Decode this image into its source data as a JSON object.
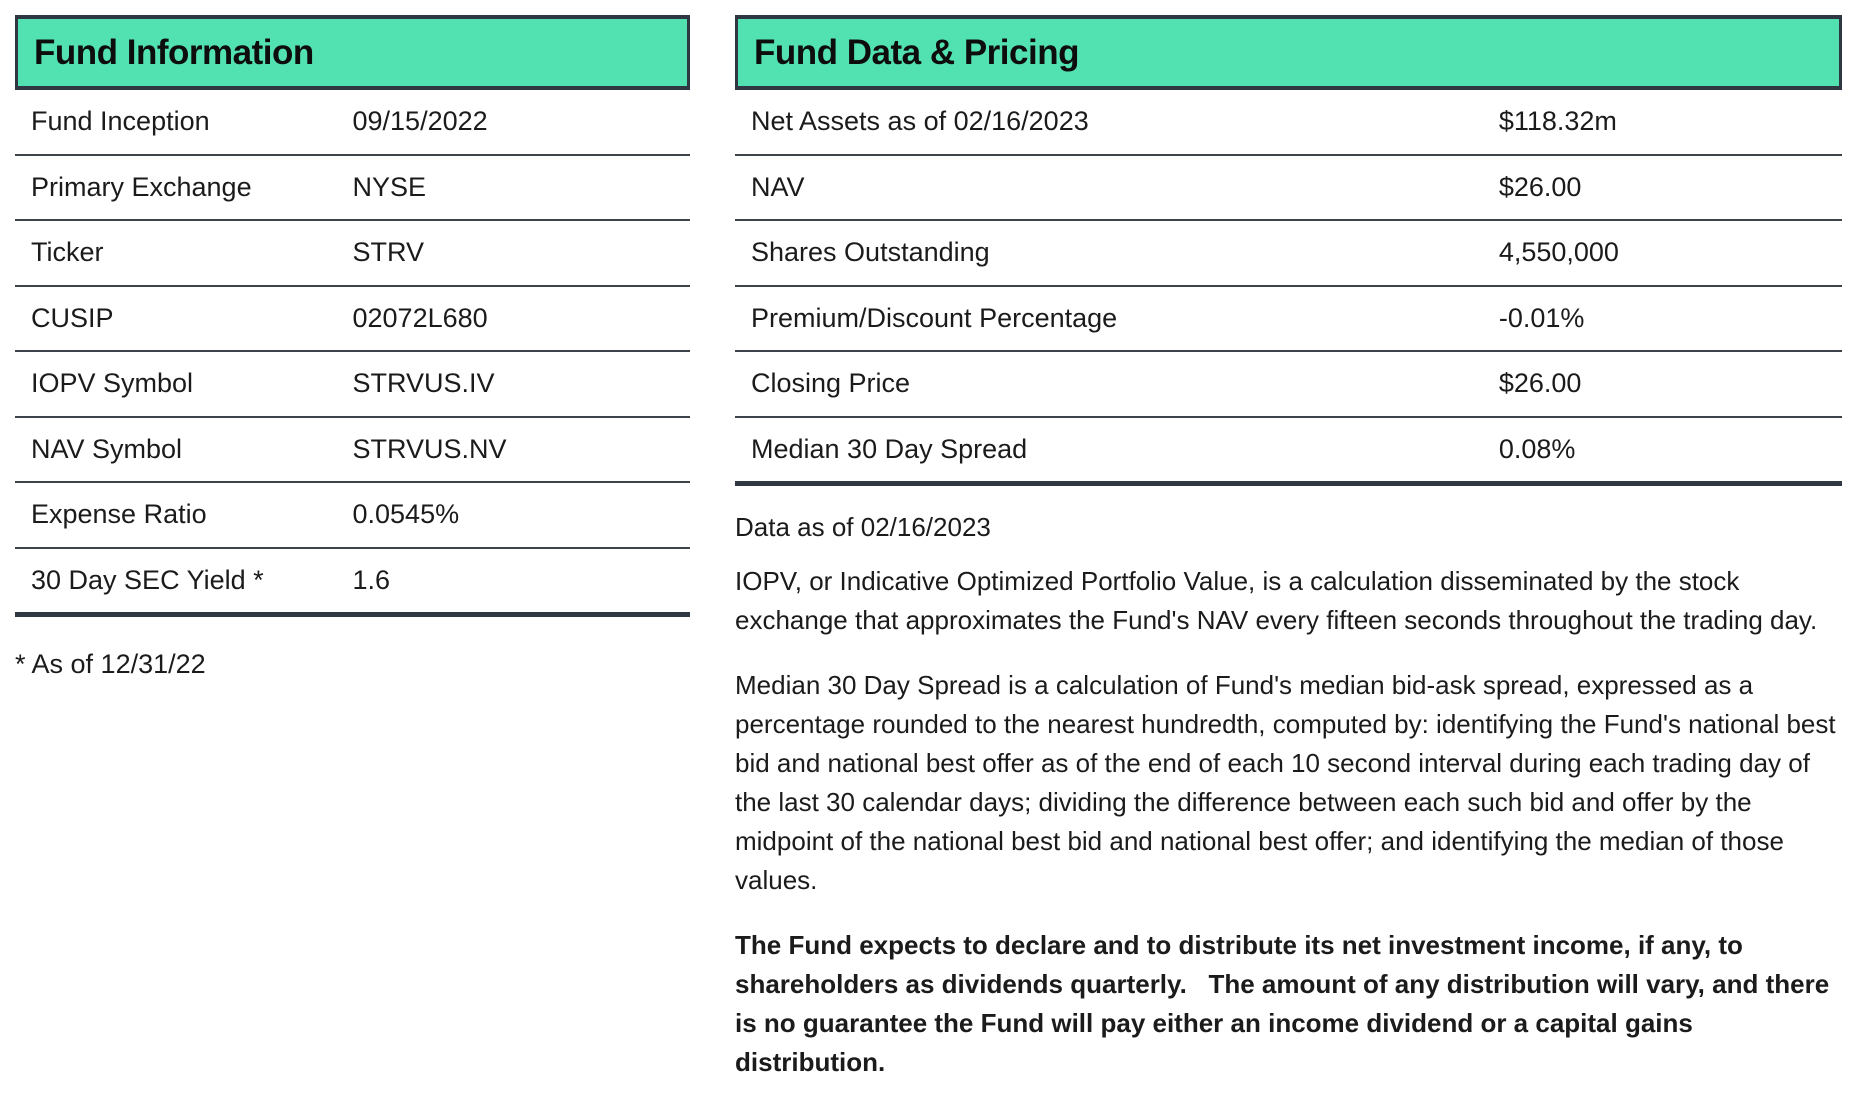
{
  "theme": {
    "accent_teal": "#52e2b2",
    "border_dark": "#2f3742",
    "divider": "#3e434b",
    "text": "#1b1b1b",
    "background": "#ffffff"
  },
  "left_table": {
    "title": "Fund Information",
    "rows": [
      {
        "label": "Fund Inception",
        "value": "09/15/2022"
      },
      {
        "label": "Primary Exchange",
        "value": "NYSE"
      },
      {
        "label": "Ticker",
        "value": "STRV"
      },
      {
        "label": "CUSIP",
        "value": "02072L680"
      },
      {
        "label": "IOPV Symbol",
        "value": "STRVUS.IV"
      },
      {
        "label": "NAV Symbol",
        "value": "STRVUS.NV"
      },
      {
        "label": "Expense Ratio",
        "value": "0.0545%"
      },
      {
        "label": "30 Day SEC Yield *",
        "value": "1.6"
      }
    ],
    "footnote": "* As of 12/31/22"
  },
  "right_table": {
    "title": "Fund Data & Pricing",
    "rows": [
      {
        "label": "Net Assets as of 02/16/2023",
        "value": "$118.32m"
      },
      {
        "label": "NAV",
        "value": "$26.00"
      },
      {
        "label": "Shares Outstanding",
        "value": "4,550,000"
      },
      {
        "label": "Premium/Discount Percentage",
        "value": "-0.01%"
      },
      {
        "label": "Closing Price",
        "value": "$26.00"
      },
      {
        "label": "Median 30 Day Spread",
        "value": "0.08%"
      }
    ]
  },
  "notes": {
    "data_as_of": "Data as of 02/16/2023",
    "iopv_paragraph": "IOPV, or Indicative Optimized Portfolio Value, is a calculation disseminated by the stock exchange that approximates the Fund's NAV every fifteen seconds throughout the trading day.",
    "median_spread_paragraph": "Median 30 Day Spread is a calculation of Fund's median bid-ask spread, expressed as a percentage rounded to the nearest hundredth, computed by: identifying the Fund's national best bid and national best offer as of the end of each 10 second interval during each trading day of the last 30 calendar days; dividing the difference between each such bid and offer by the midpoint of the national best bid and national best offer; and identifying the median of those values.",
    "distribution_paragraph": "The Fund expects to declare and to distribute its net investment income, if any, to shareholders as dividends quarterly.   The amount of any distribution will vary, and there is no guarantee the Fund will pay either an income dividend or a capital gains distribution."
  }
}
